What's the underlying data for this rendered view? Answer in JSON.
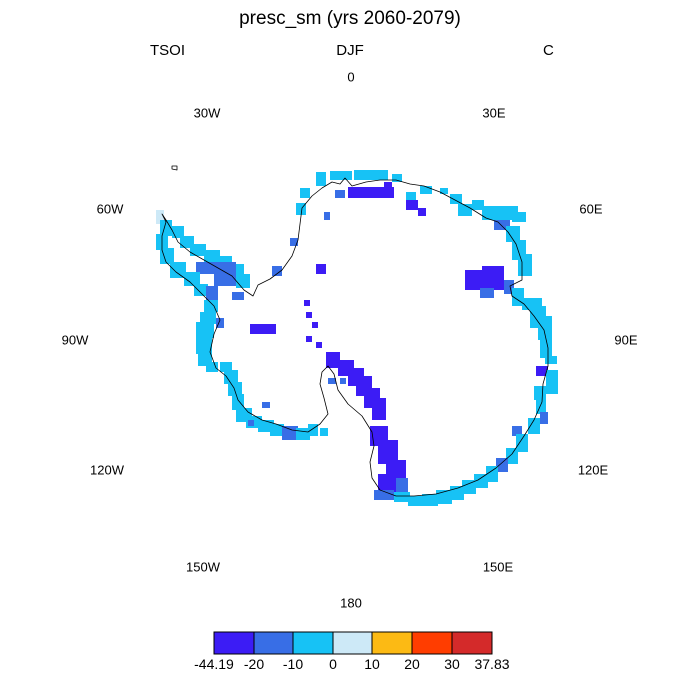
{
  "chart_data": {
    "type": "map",
    "projection": "polar-stereographic-south",
    "title": "presc_sm (yrs 2060-2079)",
    "header_left": "TSOI",
    "header_center": "DJF",
    "header_right": "C",
    "longitude_labels": [
      "0",
      "30E",
      "60E",
      "90E",
      "120E",
      "150E",
      "180",
      "150W",
      "120W",
      "90W",
      "60W",
      "30W"
    ],
    "colorbar": {
      "labels": [
        "-44.19",
        "-20",
        "-10",
        "0",
        "10",
        "20",
        "30",
        "37.83"
      ],
      "colors": [
        "#3c1cf5",
        "#386ee6",
        "#17c2f5",
        "#cde9f7",
        "#fcba14",
        "#ff3d00",
        "#d42a2a"
      ]
    }
  }
}
